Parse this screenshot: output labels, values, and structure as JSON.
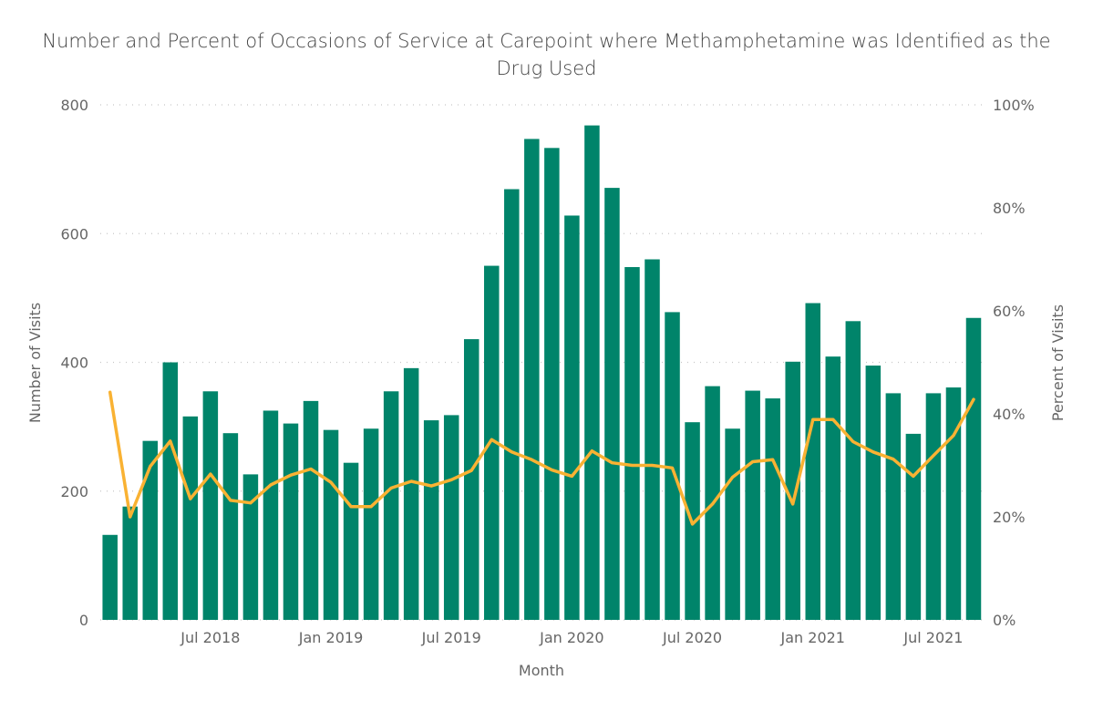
{
  "chart_data": {
    "type": "bar+line",
    "title": "Number and Percent of Occasions of Service at Carepoint where Methamphetamine was Identified as the Drug Used",
    "xlabel": "Month",
    "ylabel": "Number of Visits",
    "y2label": "Percent of Visits",
    "ylim": [
      0,
      800
    ],
    "y2lim": [
      0,
      100
    ],
    "yticks": [
      "0",
      "200",
      "400",
      "600",
      "800"
    ],
    "y2ticks": [
      "0%",
      "20%",
      "40%",
      "60%",
      "80%",
      "100%"
    ],
    "xtick_labels": [
      {
        "label": "Jul 2018",
        "month": "2018-07"
      },
      {
        "label": "Jan 2019",
        "month": "2019-01"
      },
      {
        "label": "Jul 2019",
        "month": "2019-07"
      },
      {
        "label": "Jan 2020",
        "month": "2020-01"
      },
      {
        "label": "Jul 2020",
        "month": "2020-07"
      },
      {
        "label": "Jan 2021",
        "month": "2021-01"
      },
      {
        "label": "Jul 2021",
        "month": "2021-07"
      }
    ],
    "grid": true,
    "colors": {
      "bars": "#00846A",
      "line": "#F9B233"
    },
    "months": [
      "2018-02",
      "2018-03",
      "2018-04",
      "2018-05",
      "2018-06",
      "2018-07",
      "2018-08",
      "2018-09",
      "2018-10",
      "2018-11",
      "2018-12",
      "2019-01",
      "2019-02",
      "2019-03",
      "2019-04",
      "2019-05",
      "2019-06",
      "2019-07",
      "2019-08",
      "2019-09",
      "2019-10",
      "2019-11",
      "2019-12",
      "2020-01",
      "2020-02",
      "2020-03",
      "2020-04",
      "2020-05",
      "2020-06",
      "2020-07",
      "2020-08",
      "2020-09",
      "2020-10",
      "2020-11",
      "2020-12",
      "2021-01",
      "2021-02",
      "2021-03",
      "2021-04",
      "2021-05",
      "2021-06",
      "2021-07",
      "2021-08",
      "2021-09"
    ],
    "series": [
      {
        "type": "bar",
        "axis": "left",
        "values": [
          132,
          176,
          278,
          400,
          316,
          355,
          290,
          226,
          325,
          305,
          340,
          295,
          244,
          297,
          355,
          391,
          310,
          318,
          436,
          550,
          669,
          747,
          733,
          628,
          768,
          671,
          548,
          560,
          478,
          307,
          363,
          297,
          356,
          344,
          401,
          492,
          409,
          464,
          395,
          352,
          289,
          352,
          361,
          469
        ]
      },
      {
        "type": "line",
        "axis": "right",
        "values": [
          44.2,
          20,
          29.8,
          34.7,
          23.5,
          28.3,
          23.2,
          22.7,
          26.2,
          28.1,
          29.3,
          26.7,
          22,
          22,
          25.6,
          26.9,
          26,
          27.2,
          29,
          35,
          32.6,
          31.1,
          29.1,
          27.9,
          32.8,
          30.5,
          30,
          30,
          29.5,
          18.6,
          22.5,
          27.7,
          30.7,
          31.1,
          22.5,
          38.9,
          38.9,
          34.6,
          32.6,
          31.2,
          27.9,
          31.9,
          35.8,
          42.8
        ]
      }
    ]
  }
}
